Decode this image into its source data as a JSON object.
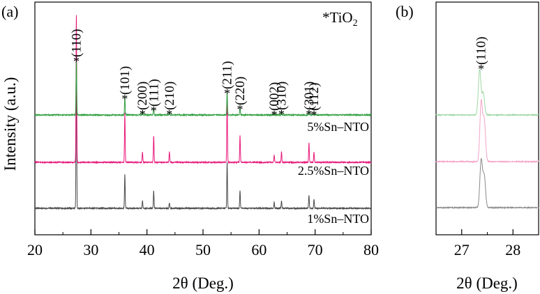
{
  "chart_data": [
    {
      "panel_label": "(a)",
      "type": "line",
      "xlabel": "2θ (Deg.)",
      "ylabel": "Intensity (a.u.)",
      "xlim": [
        20,
        80
      ],
      "x_ticks": [
        20,
        30,
        40,
        50,
        60,
        70,
        80
      ],
      "legend": {
        "symbol": "*",
        "phase": "TiO",
        "subscript": "2"
      },
      "series": [
        {
          "name": "1%Sn–NTO",
          "color": "#4a4a4a",
          "peaks": [
            {
              "x": 27.4,
              "h": 1.0
            },
            {
              "x": 36.05,
              "h": 0.23
            },
            {
              "x": 39.2,
              "h": 0.05
            },
            {
              "x": 41.2,
              "h": 0.12
            },
            {
              "x": 44.0,
              "h": 0.04
            },
            {
              "x": 54.3,
              "h": 0.32
            },
            {
              "x": 56.6,
              "h": 0.12
            },
            {
              "x": 62.7,
              "h": 0.04
            },
            {
              "x": 64.0,
              "h": 0.05
            },
            {
              "x": 68.9,
              "h": 0.09
            },
            {
              "x": 69.8,
              "h": 0.06
            }
          ]
        },
        {
          "name": "2.5%Sn–NTO",
          "color": "#e8187c",
          "peaks": [
            {
              "x": 27.4,
              "h": 1.0
            },
            {
              "x": 36.05,
              "h": 0.33
            },
            {
              "x": 39.2,
              "h": 0.07
            },
            {
              "x": 41.2,
              "h": 0.18
            },
            {
              "x": 44.0,
              "h": 0.07
            },
            {
              "x": 54.3,
              "h": 0.42
            },
            {
              "x": 56.6,
              "h": 0.18
            },
            {
              "x": 62.7,
              "h": 0.05
            },
            {
              "x": 64.0,
              "h": 0.07
            },
            {
              "x": 68.9,
              "h": 0.13
            },
            {
              "x": 69.8,
              "h": 0.07
            }
          ]
        },
        {
          "name": "5%Sn–NTO",
          "color": "#2e9e3e",
          "peaks": [
            {
              "x": 27.4,
              "h": 1.0
            },
            {
              "x": 36.05,
              "h": 0.33
            },
            {
              "x": 39.2,
              "h": 0.07
            },
            {
              "x": 41.2,
              "h": 0.13
            },
            {
              "x": 44.0,
              "h": 0.06
            },
            {
              "x": 54.3,
              "h": 0.42
            },
            {
              "x": 56.6,
              "h": 0.13
            },
            {
              "x": 62.7,
              "h": 0.05
            },
            {
              "x": 64.0,
              "h": 0.07
            },
            {
              "x": 68.9,
              "h": 0.07
            },
            {
              "x": 69.8,
              "h": 0.05
            }
          ]
        }
      ],
      "annotations": [
        {
          "label": "(110)",
          "x": 27.4
        },
        {
          "label": "(101)",
          "x": 36.05
        },
        {
          "label": "(200)",
          "x": 39.2
        },
        {
          "label": "(111)",
          "x": 41.2
        },
        {
          "label": "(210)",
          "x": 44.0
        },
        {
          "label": "(211)",
          "x": 54.3
        },
        {
          "label": "(220)",
          "x": 56.6
        },
        {
          "label": "(002)",
          "x": 62.7
        },
        {
          "label": "(310)",
          "x": 64.0
        },
        {
          "label": "(301)",
          "x": 68.9
        },
        {
          "label": "(112)",
          "x": 69.8
        }
      ]
    },
    {
      "panel_label": "(b)",
      "type": "line",
      "xlabel": "2θ (Deg.)",
      "xlim": [
        26.5,
        28.5
      ],
      "x_ticks": [
        27,
        28
      ],
      "annotation": {
        "symbol": "*",
        "label": "(110)",
        "x": 27.38
      },
      "series": [
        {
          "name": "1%Sn–NTO",
          "color": "#8a8a8a",
          "main_peak": 27.38,
          "shoulder": 27.44,
          "h": 0.75,
          "shoulder_h": 0.5
        },
        {
          "name": "2.5%Sn–NTO",
          "color": "#f4a3c6",
          "main_peak": 27.38,
          "shoulder": 27.44,
          "h": 0.95,
          "shoulder_h": 0.65
        },
        {
          "name": "5%Sn–NTO",
          "color": "#9ed8a4",
          "main_peak": 27.35,
          "shoulder": 27.42,
          "h": 0.72,
          "shoulder_h": 0.35
        }
      ]
    }
  ]
}
